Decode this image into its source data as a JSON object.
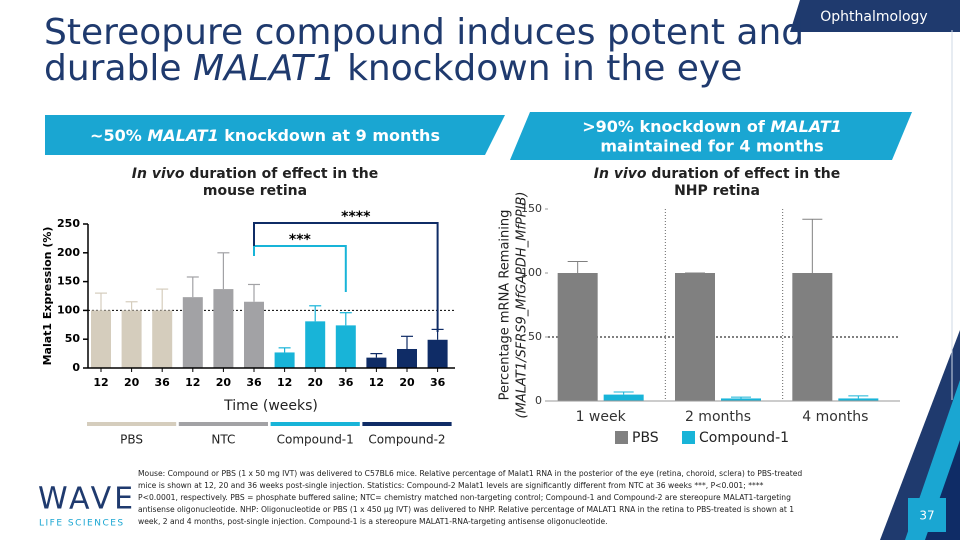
{
  "slide": {
    "title": [
      "Stereopure compound induces potent and",
      "durable ",
      "MALAT1",
      " knockdown in the eye"
    ],
    "tag": "Ophthalmology",
    "banner_left": [
      "~50% ",
      "MALAT1",
      " knockdown at 9 months"
    ],
    "banner_right": [
      ">90% knockdown of ",
      "MALAT1",
      "maintained for 4 months"
    ],
    "footnote": [
      "Mouse: Compound or PBS (1 x 50 mg IVT) was delivered to C57BL6 mice. Relative percentage of Malat1 RNA in the posterior of the eye (retina, choroid, sclera) to PBS-treated",
      "mice is shown at 12, 20 and 36 weeks post-single injection. Statistics: Compound-2 Malat1 levels are significantly different from NTC at 36 weeks ***, P<0.001; ****",
      "P<0.0001, respectively. PBS = phosphate buffered saline; NTC= chemistry matched non-targeting control; Compound-1 and Compound-2 are stereopure MALAT1-targeting",
      "antisense oligonucleotide. NHP: Oligonucleotide or PBS (1 x 450 µg IVT) was delivered to NHP. Relative percentage of MALAT1 RNA in the retina to PBS-treated is shown at 1",
      "week, 2 and 4 months, post-single injection. Compound-1 is a stereopure MALAT1-RNA-targeting antisense oligonucleotide."
    ],
    "logo": "WAVE",
    "logo_tm": "™",
    "logo_sub": "LIFE SCIENCES",
    "page_number": "37"
  },
  "chart_data": [
    {
      "type": "bar",
      "title_italic": "In vivo",
      "title": [
        " duration of effect in the",
        "mouse retina"
      ],
      "y_label": "Malat1 Expression (%)",
      "x_label": "Time (weeks)",
      "categories": [
        "12",
        "20",
        "36"
      ],
      "series": [
        {
          "name": "PBS",
          "color": "#d5cdbd",
          "values": [
            100,
            100,
            100
          ],
          "errors": [
            30,
            15,
            37
          ]
        },
        {
          "name": "NTC",
          "color": "#a2a2a5",
          "values": [
            123,
            137,
            115
          ],
          "errors": [
            35,
            63,
            30
          ]
        },
        {
          "name": "Compound-1",
          "color": "#18b4d8",
          "values": [
            27,
            81,
            74
          ],
          "errors": [
            8,
            27,
            22
          ]
        },
        {
          "name": "Compound-2",
          "color": "#0f2c66",
          "values": [
            18,
            33,
            49
          ],
          "errors": [
            7,
            22,
            18
          ]
        }
      ],
      "ylim": [
        0,
        250
      ],
      "yticks": [
        0,
        50,
        100,
        150,
        200,
        250
      ],
      "reference_line": 100,
      "annotations": [
        {
          "text": "***"
        },
        {
          "text": "****"
        }
      ]
    },
    {
      "type": "bar",
      "title_italic": "In vivo",
      "title": [
        " duration of effect in the",
        "NHP retina"
      ],
      "y_label": [
        "Percentage mRNA Remaining",
        "(MALAT1/SFRS9_MfGAPDH_MfPPIB)"
      ],
      "categories": [
        "1 week",
        "2 months",
        "4 months"
      ],
      "series": [
        {
          "name": "PBS",
          "color": "#808080",
          "values": [
            100,
            100,
            100
          ],
          "errors": [
            9,
            0,
            42
          ]
        },
        {
          "name": "Compound-1",
          "color": "#18b4d8",
          "values": [
            5,
            2,
            2
          ],
          "errors": [
            2,
            1,
            2
          ]
        }
      ],
      "ylim": [
        0,
        150
      ],
      "yticks": [
        0,
        50,
        100,
        150
      ],
      "reference_line": 50
    }
  ]
}
